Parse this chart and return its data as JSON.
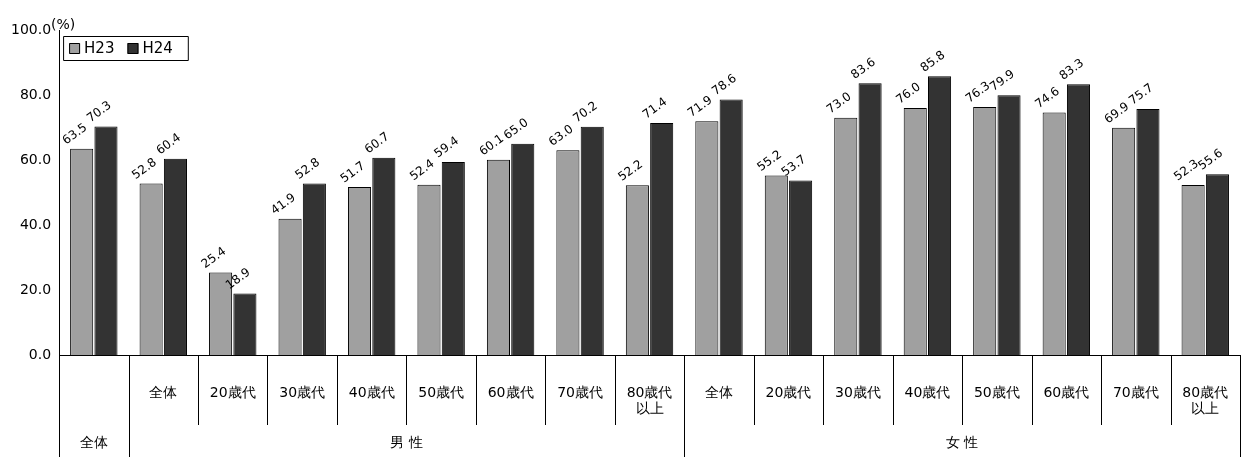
{
  "chart_data": {
    "type": "bar",
    "ylabel": "(%)",
    "categories": [
      null,
      "全体",
      "20歳代",
      "30歳代",
      "40歳代",
      "50歳代",
      "60歳代",
      "70歳代",
      "80歳代以上",
      "全体",
      "20歳代",
      "30歳代",
      "40歳代",
      "50歳代",
      "60歳代",
      "70歳代",
      "80歳代以上"
    ],
    "series": [
      {
        "name": "H23",
        "color": "#a0a0a0",
        "values": [
          63.5,
          52.8,
          25.4,
          41.9,
          51.7,
          52.4,
          60.1,
          63.0,
          52.2,
          71.9,
          55.2,
          73.0,
          76.0,
          76.3,
          74.6,
          69.9,
          52.3
        ],
        "value_labels": [
          "63.5",
          "52.8",
          "25.4",
          "41.9",
          "51.7",
          "52.4",
          "60.1",
          "63.0",
          "52.2",
          "71.9",
          "55.2",
          "73.0",
          "76.0",
          "76.3",
          "74.6",
          "69.9",
          "52.3"
        ]
      },
      {
        "name": "H24",
        "color": "#333333",
        "values": [
          70.3,
          60.4,
          18.9,
          52.8,
          60.7,
          59.4,
          65.0,
          70.2,
          71.4,
          78.6,
          53.7,
          83.6,
          85.8,
          79.9,
          83.3,
          75.7,
          55.6
        ],
        "value_labels": [
          "70.3",
          "60.4",
          "18.9",
          "52.8",
          "60.7",
          "59.4",
          "65.0",
          "70.2",
          "71.4",
          "78.6",
          "53.7",
          "83.6",
          "85.8",
          "79.9",
          "83.3",
          "75.7",
          "55.6"
        ]
      }
    ],
    "annotations": [
      "全体",
      "男 性",
      "女 性"
    ],
    "ylim": [
      0,
      100
    ],
    "yticks": [
      {
        "value": 0,
        "label": "0.0"
      },
      {
        "value": 20,
        "label": "20.0"
      },
      {
        "value": 40,
        "label": "40.0"
      },
      {
        "value": 60,
        "label": "60.0"
      },
      {
        "value": 80,
        "label": "80.0"
      },
      {
        "value": 100,
        "label": "100.0"
      }
    ],
    "legend": "top left",
    "grid": false
  }
}
